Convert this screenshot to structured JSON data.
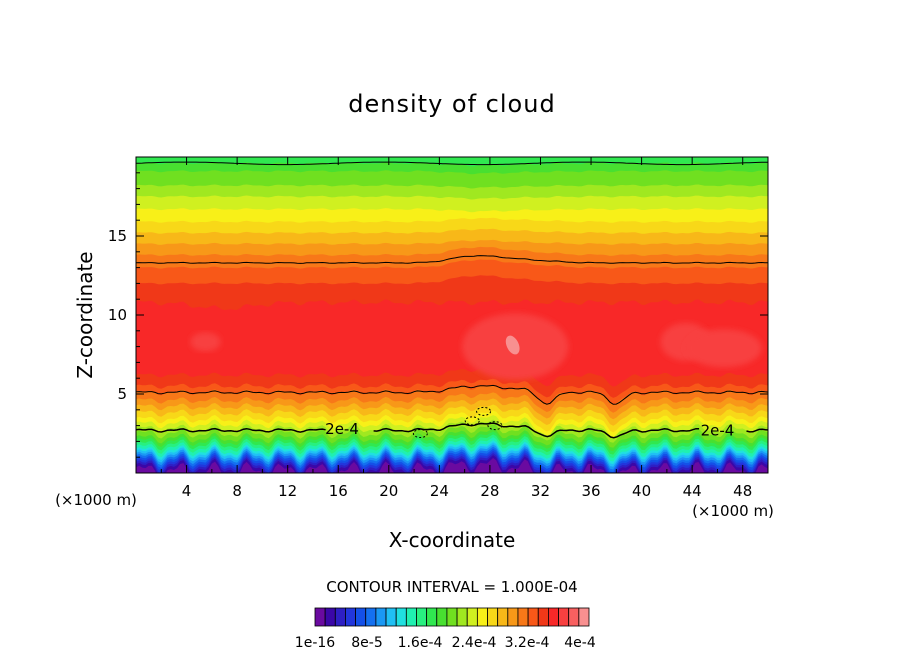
{
  "chart_data": {
    "type": "heatmap",
    "title": "density of cloud",
    "xlabel": "X-coordinate",
    "ylabel": "Z-coordinate",
    "x_unit_left": "(×1000 m)",
    "x_unit_right": "(×1000 m)",
    "xlim": [
      0,
      50
    ],
    "ylim": [
      0,
      20
    ],
    "xticks": [
      4,
      8,
      12,
      16,
      20,
      24,
      28,
      32,
      36,
      40,
      44,
      48
    ],
    "yticks": [
      5,
      10,
      15
    ],
    "contour_interval_text": "CONTOUR INTERVAL = 1.000E-04",
    "contour_labels": [
      {
        "text": "2e-4",
        "x": 16.3,
        "z": 2.8
      },
      {
        "text": "2e-4",
        "x": 46.0,
        "z": 2.7
      }
    ],
    "colorbar": {
      "colors": [
        "#6a0aa0",
        "#3b07a8",
        "#2e1fc4",
        "#2236dc",
        "#1450e8",
        "#1470f0",
        "#1a98f4",
        "#20c0f4",
        "#20e0e0",
        "#20f0b0",
        "#28f080",
        "#30e850",
        "#48e030",
        "#70e020",
        "#a0e820",
        "#d0f020",
        "#f8f018",
        "#f8d818",
        "#f8b818",
        "#f89818",
        "#f87818",
        "#f85818",
        "#f03818",
        "#f82828",
        "#f84040",
        "#f86060",
        "#f89090"
      ],
      "labels": [
        "1e-16",
        "8e-5",
        "1.6e-4",
        "2.4e-4",
        "3.2e-4",
        "4e-4"
      ]
    }
  }
}
